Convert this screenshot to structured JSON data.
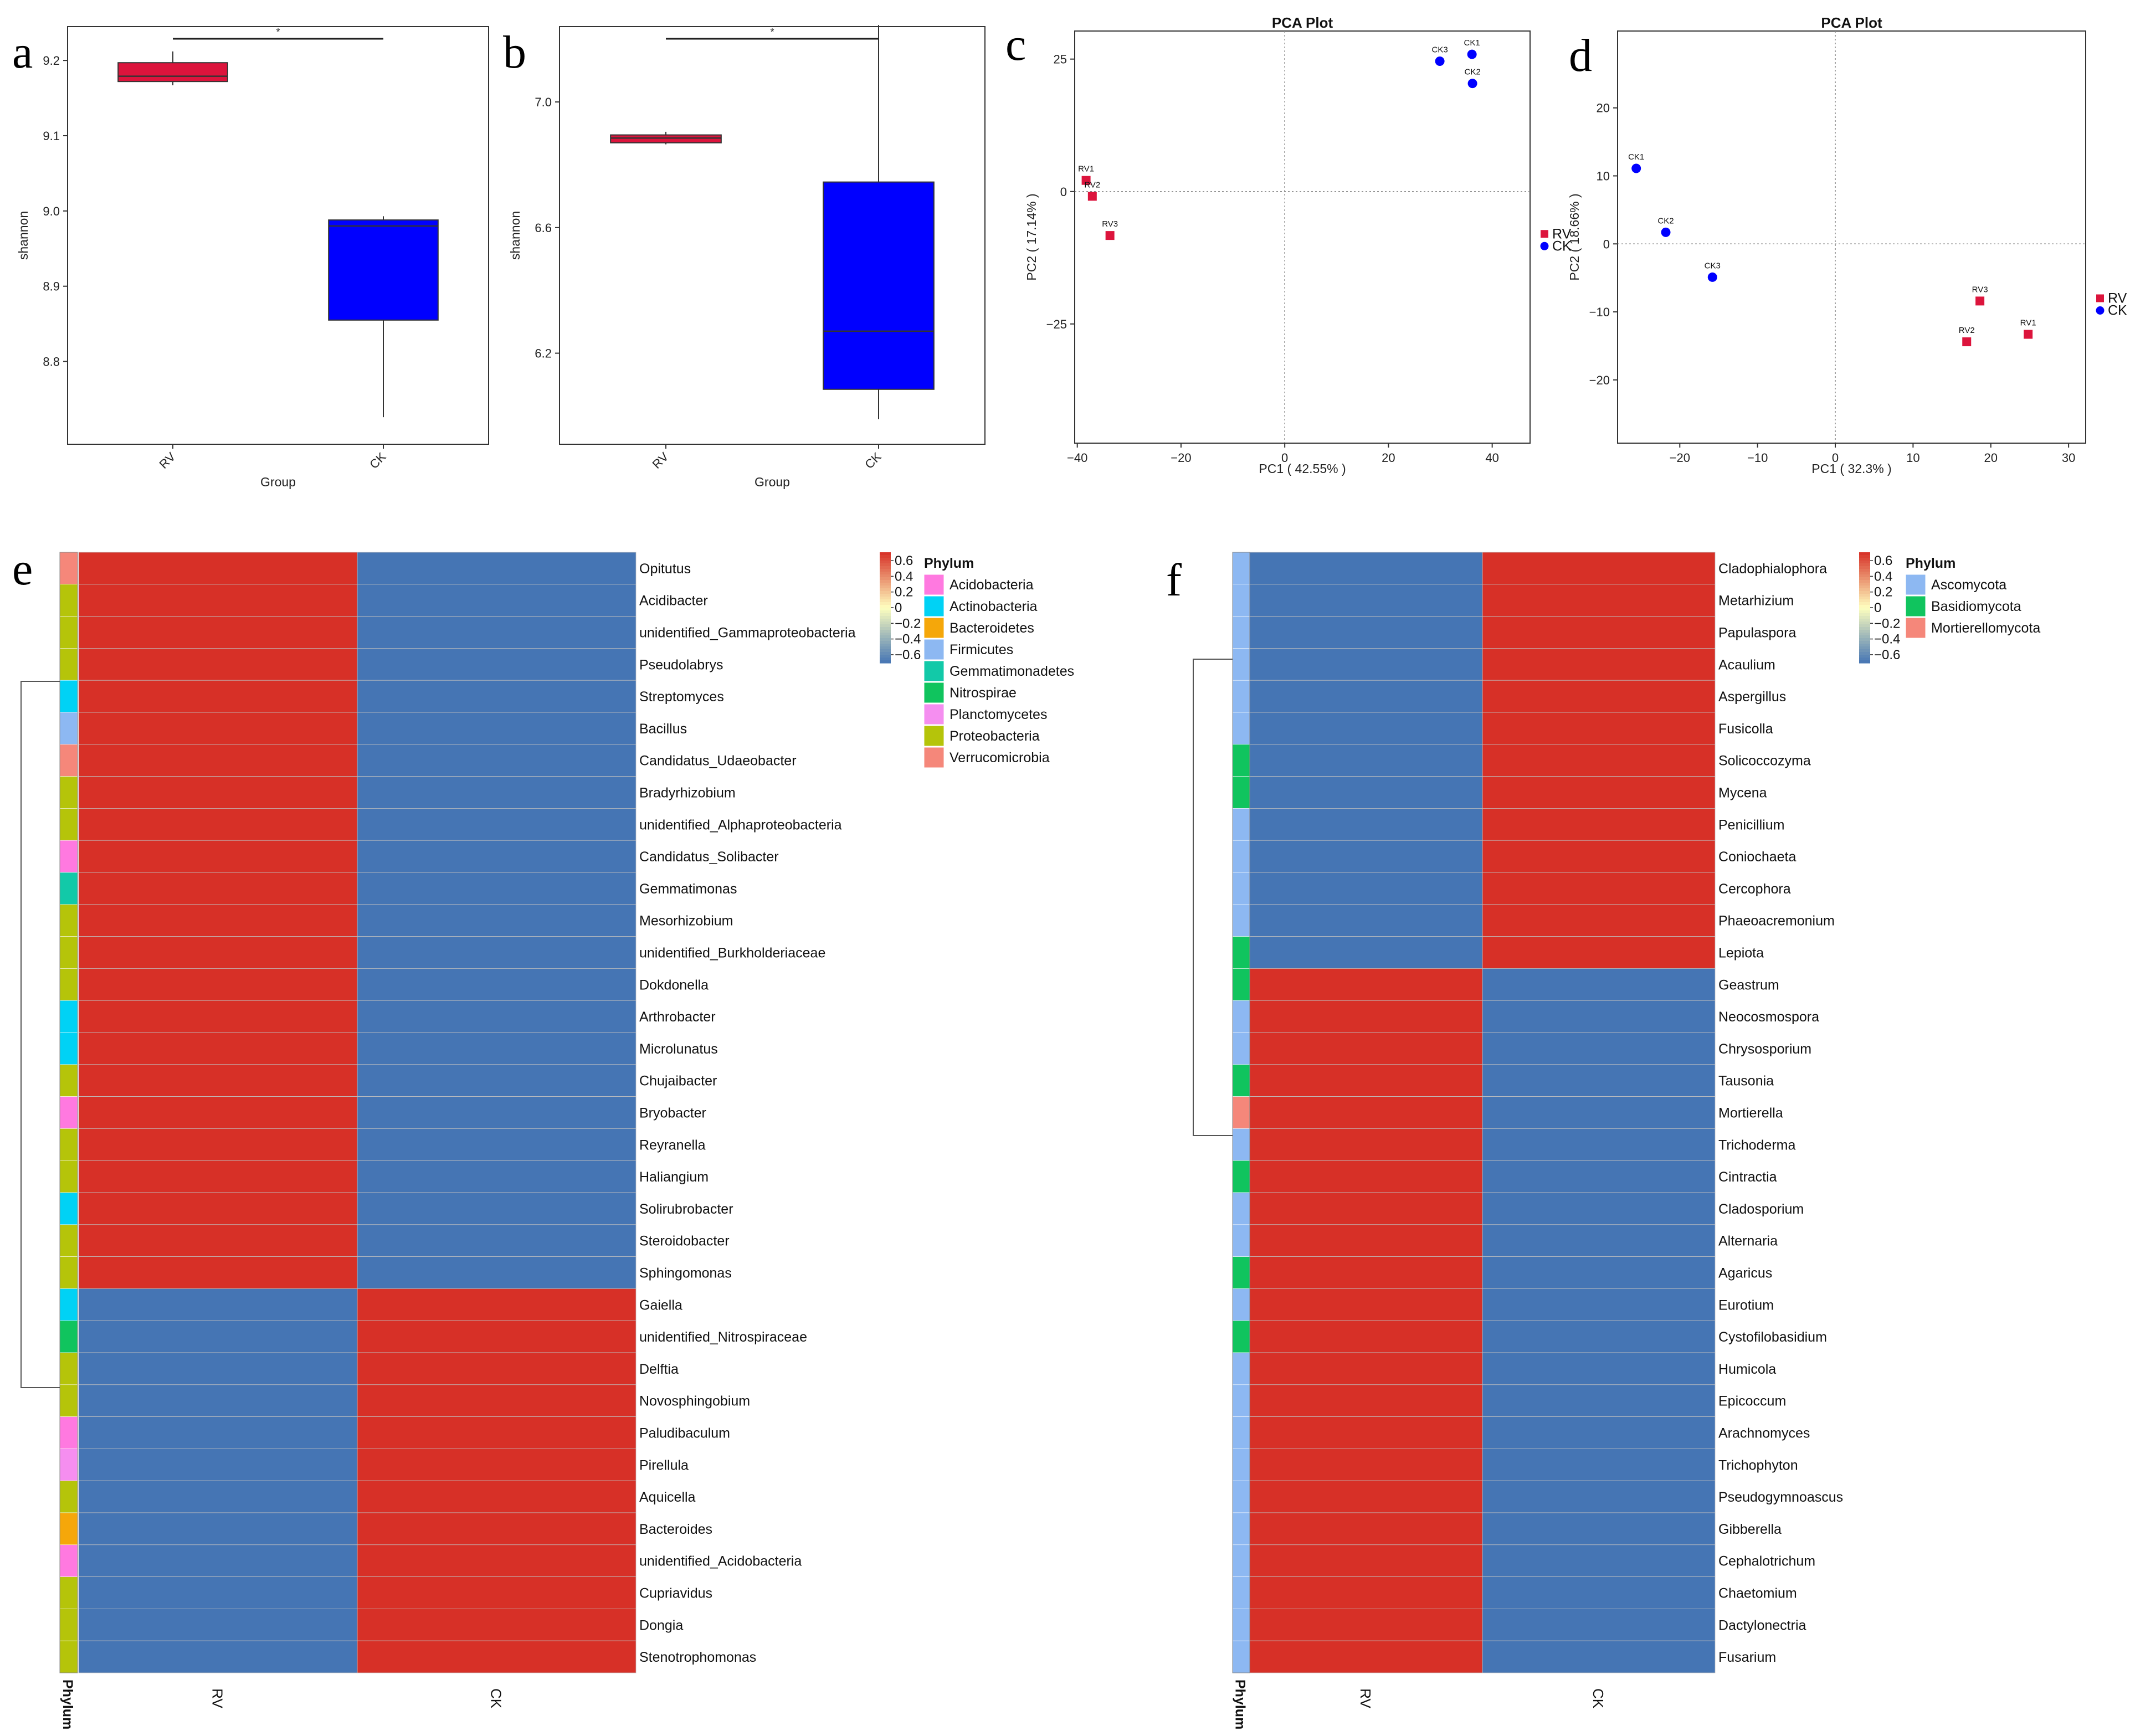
{
  "colors": {
    "rv": "#dc143c",
    "ck": "#0000ff",
    "heat_high": "#d73027",
    "heat_low": "#4575b4"
  },
  "chart_data": [
    {
      "id": "a",
      "type": "box",
      "panel_label": "a",
      "xlabel": "Group",
      "ylabel": "shannon",
      "categories": [
        "RV",
        "CK"
      ],
      "yticks": [
        8.8,
        8.9,
        9.0,
        9.1,
        9.2
      ],
      "ylim": [
        8.69,
        9.245
      ],
      "boxes": [
        {
          "group": "RV",
          "min": 9.167,
          "q1": 9.172,
          "median": 9.179,
          "q3": 9.197,
          "max": 9.212,
          "color": "#dc143c"
        },
        {
          "group": "CK",
          "min": 8.726,
          "q1": 8.855,
          "median": 8.98,
          "q3": 8.988,
          "max": 8.993,
          "color": "#0000ff"
        }
      ],
      "significance": "*"
    },
    {
      "id": "b",
      "type": "box",
      "panel_label": "b",
      "xlabel": "Group",
      "ylabel": "shannon",
      "categories": [
        "RV",
        "CK"
      ],
      "yticks": [
        6.2,
        6.6,
        7.0
      ],
      "ylim": [
        5.91,
        7.24
      ],
      "boxes": [
        {
          "group": "RV",
          "min": 6.865,
          "q1": 6.87,
          "median": 6.885,
          "q3": 6.895,
          "max": 6.905,
          "color": "#dc143c"
        },
        {
          "group": "CK",
          "min": 5.99,
          "q1": 6.085,
          "median": 6.27,
          "q3": 6.745,
          "max": 7.245,
          "color": "#0000ff"
        }
      ],
      "significance": "*"
    },
    {
      "id": "c",
      "type": "scatter",
      "panel_label": "c",
      "title": "PCA Plot",
      "xlabel": "PC1 ( 42.55% )",
      "ylabel": "PC2 ( 17.14% )",
      "xlim": [
        -40.5,
        47.3
      ],
      "ylim": [
        -47.5,
        30.3
      ],
      "xticks": [
        -40,
        -20,
        0,
        20,
        40
      ],
      "yticks": [
        25,
        0,
        -25
      ],
      "legend": [
        "RV",
        "CK"
      ],
      "legend_position": "right",
      "points": [
        {
          "label": "RV1",
          "group": "RV",
          "x": -38.3,
          "y": 2.1
        },
        {
          "label": "RV2",
          "group": "RV",
          "x": -37.1,
          "y": -0.9
        },
        {
          "label": "RV3",
          "group": "RV",
          "x": -33.7,
          "y": -8.3
        },
        {
          "label": "CK3",
          "group": "CK",
          "x": 29.9,
          "y": 24.6
        },
        {
          "label": "CK1",
          "group": "CK",
          "x": 36.1,
          "y": 25.9
        },
        {
          "label": "CK2",
          "group": "CK",
          "x": 36.2,
          "y": 20.4
        }
      ]
    },
    {
      "id": "d",
      "type": "scatter",
      "panel_label": "d",
      "title": "PCA Plot",
      "xlabel": "PC1 ( 32.3% )",
      "ylabel": "PC2 ( 18.66% )",
      "xlim": [
        -28,
        32.2
      ],
      "ylim": [
        -29.3,
        31.3
      ],
      "xticks": [
        -20,
        -10,
        0,
        10,
        20,
        30
      ],
      "yticks": [
        20,
        10,
        0,
        -10,
        -20
      ],
      "legend": [
        "RV",
        "CK"
      ],
      "legend_position": "right",
      "points": [
        {
          "label": "CK1",
          "group": "CK",
          "x": -25.6,
          "y": 11.1
        },
        {
          "label": "CK2",
          "group": "CK",
          "x": -21.8,
          "y": 1.7
        },
        {
          "label": "CK3",
          "group": "CK",
          "x": -15.8,
          "y": -4.9
        },
        {
          "label": "RV3",
          "group": "RV",
          "x": 18.6,
          "y": -8.4
        },
        {
          "label": "RV2",
          "group": "RV",
          "x": 16.9,
          "y": -14.4
        },
        {
          "label": "RV1",
          "group": "RV",
          "x": 24.8,
          "y": -13.3
        }
      ]
    },
    {
      "id": "e",
      "type": "heatmap",
      "panel_label": "e",
      "columns": [
        "RV",
        "CK"
      ],
      "annotation_label": "Phylum",
      "color_scale": {
        "min": -0.707,
        "max": 0.707,
        "ticks": [
          0.6,
          0.4,
          0.2,
          0,
          -0.2,
          -0.4,
          -0.6
        ]
      },
      "legend_title": "Phylum",
      "phyla": [
        {
          "name": "Acidobacteria",
          "color": "#ff79e0"
        },
        {
          "name": "Actinobacteria",
          "color": "#00d2f5"
        },
        {
          "name": "Bacteroidetes",
          "color": "#f5a70a"
        },
        {
          "name": "Firmicutes",
          "color": "#8db8f2"
        },
        {
          "name": "Gemmatimonadetes",
          "color": "#12c9a8"
        },
        {
          "name": "Nitrospirae",
          "color": "#10c45e"
        },
        {
          "name": "Planctomycetes",
          "color": "#f58ef0"
        },
        {
          "name": "Proteobacteria",
          "color": "#b5c40a"
        },
        {
          "name": "Verrucomicrobia",
          "color": "#f5877a"
        }
      ],
      "rows": [
        {
          "name": "Opitutus",
          "phylum": "Verrucomicrobia",
          "values": [
            0.707,
            -0.707
          ]
        },
        {
          "name": "Acidibacter",
          "phylum": "Proteobacteria",
          "values": [
            0.707,
            -0.707
          ]
        },
        {
          "name": "unidentified_Gammaproteobacteria",
          "phylum": "Proteobacteria",
          "values": [
            0.707,
            -0.707
          ]
        },
        {
          "name": "Pseudolabrys",
          "phylum": "Proteobacteria",
          "values": [
            0.707,
            -0.707
          ]
        },
        {
          "name": "Streptomyces",
          "phylum": "Actinobacteria",
          "values": [
            0.707,
            -0.707
          ]
        },
        {
          "name": "Bacillus",
          "phylum": "Firmicutes",
          "values": [
            0.707,
            -0.707
          ]
        },
        {
          "name": "Candidatus_Udaeobacter",
          "phylum": "Verrucomicrobia",
          "values": [
            0.707,
            -0.707
          ]
        },
        {
          "name": "Bradyrhizobium",
          "phylum": "Proteobacteria",
          "values": [
            0.707,
            -0.707
          ]
        },
        {
          "name": "unidentified_Alphaproteobacteria",
          "phylum": "Proteobacteria",
          "values": [
            0.707,
            -0.707
          ]
        },
        {
          "name": "Candidatus_Solibacter",
          "phylum": "Acidobacteria",
          "values": [
            0.707,
            -0.707
          ]
        },
        {
          "name": "Gemmatimonas",
          "phylum": "Gemmatimonadetes",
          "values": [
            0.707,
            -0.707
          ]
        },
        {
          "name": "Mesorhizobium",
          "phylum": "Proteobacteria",
          "values": [
            0.707,
            -0.707
          ]
        },
        {
          "name": "unidentified_Burkholderiaceae",
          "phylum": "Proteobacteria",
          "values": [
            0.707,
            -0.707
          ]
        },
        {
          "name": "Dokdonella",
          "phylum": "Proteobacteria",
          "values": [
            0.707,
            -0.707
          ]
        },
        {
          "name": "Arthrobacter",
          "phylum": "Actinobacteria",
          "values": [
            0.707,
            -0.707
          ]
        },
        {
          "name": "Microlunatus",
          "phylum": "Actinobacteria",
          "values": [
            0.707,
            -0.707
          ]
        },
        {
          "name": "Chujaibacter",
          "phylum": "Proteobacteria",
          "values": [
            0.707,
            -0.707
          ]
        },
        {
          "name": "Bryobacter",
          "phylum": "Acidobacteria",
          "values": [
            0.707,
            -0.707
          ]
        },
        {
          "name": "Reyranella",
          "phylum": "Proteobacteria",
          "values": [
            0.707,
            -0.707
          ]
        },
        {
          "name": "Haliangium",
          "phylum": "Proteobacteria",
          "values": [
            0.707,
            -0.707
          ]
        },
        {
          "name": "Solirubrobacter",
          "phylum": "Actinobacteria",
          "values": [
            0.707,
            -0.707
          ]
        },
        {
          "name": "Steroidobacter",
          "phylum": "Proteobacteria",
          "values": [
            0.707,
            -0.707
          ]
        },
        {
          "name": "Sphingomonas",
          "phylum": "Proteobacteria",
          "values": [
            0.707,
            -0.707
          ]
        },
        {
          "name": "Gaiella",
          "phylum": "Actinobacteria",
          "values": [
            -0.707,
            0.707
          ]
        },
        {
          "name": "unidentified_Nitrospiraceae",
          "phylum": "Nitrospirae",
          "values": [
            -0.707,
            0.707
          ]
        },
        {
          "name": "Delftia",
          "phylum": "Proteobacteria",
          "values": [
            -0.707,
            0.707
          ]
        },
        {
          "name": "Novosphingobium",
          "phylum": "Proteobacteria",
          "values": [
            -0.707,
            0.707
          ]
        },
        {
          "name": "Paludibaculum",
          "phylum": "Acidobacteria",
          "values": [
            -0.707,
            0.707
          ]
        },
        {
          "name": "Pirellula",
          "phylum": "Planctomycetes",
          "values": [
            -0.707,
            0.707
          ]
        },
        {
          "name": "Aquicella",
          "phylum": "Proteobacteria",
          "values": [
            -0.707,
            0.707
          ]
        },
        {
          "name": "Bacteroides",
          "phylum": "Bacteroidetes",
          "values": [
            -0.707,
            0.707
          ]
        },
        {
          "name": "unidentified_Acidobacteria",
          "phylum": "Acidobacteria",
          "values": [
            -0.707,
            0.707
          ]
        },
        {
          "name": "Cupriavidus",
          "phylum": "Proteobacteria",
          "values": [
            -0.707,
            0.707
          ]
        },
        {
          "name": "Dongia",
          "phylum": "Proteobacteria",
          "values": [
            -0.707,
            0.707
          ]
        },
        {
          "name": "Stenotrophomonas",
          "phylum": "Proteobacteria",
          "values": [
            -0.707,
            0.707
          ]
        }
      ]
    },
    {
      "id": "f",
      "type": "heatmap",
      "panel_label": "f",
      "columns": [
        "RV",
        "CK"
      ],
      "annotation_label": "Phylum",
      "color_scale": {
        "min": -0.707,
        "max": 0.707,
        "ticks": [
          0.6,
          0.4,
          0.2,
          0,
          -0.2,
          -0.4,
          -0.6
        ]
      },
      "legend_title": "Phylum",
      "phyla": [
        {
          "name": "Ascomycota",
          "color": "#8db8f2"
        },
        {
          "name": "Basidiomycota",
          "color": "#10c45e"
        },
        {
          "name": "Mortierellomycota",
          "color": "#f5877a"
        }
      ],
      "rows": [
        {
          "name": "Cladophialophora",
          "phylum": "Ascomycota",
          "values": [
            -0.707,
            0.707
          ]
        },
        {
          "name": "Metarhizium",
          "phylum": "Ascomycota",
          "values": [
            -0.707,
            0.707
          ]
        },
        {
          "name": "Papulaspora",
          "phylum": "Ascomycota",
          "values": [
            -0.707,
            0.707
          ]
        },
        {
          "name": "Acaulium",
          "phylum": "Ascomycota",
          "values": [
            -0.707,
            0.707
          ]
        },
        {
          "name": "Aspergillus",
          "phylum": "Ascomycota",
          "values": [
            -0.707,
            0.707
          ]
        },
        {
          "name": "Fusicolla",
          "phylum": "Ascomycota",
          "values": [
            -0.707,
            0.707
          ]
        },
        {
          "name": "Solicoccozyma",
          "phylum": "Basidiomycota",
          "values": [
            -0.707,
            0.707
          ]
        },
        {
          "name": "Mycena",
          "phylum": "Basidiomycota",
          "values": [
            -0.707,
            0.707
          ]
        },
        {
          "name": "Penicillium",
          "phylum": "Ascomycota",
          "values": [
            -0.707,
            0.707
          ]
        },
        {
          "name": "Coniochaeta",
          "phylum": "Ascomycota",
          "values": [
            -0.707,
            0.707
          ]
        },
        {
          "name": "Cercophora",
          "phylum": "Ascomycota",
          "values": [
            -0.707,
            0.707
          ]
        },
        {
          "name": "Phaeoacremonium",
          "phylum": "Ascomycota",
          "values": [
            -0.707,
            0.707
          ]
        },
        {
          "name": "Lepiota",
          "phylum": "Basidiomycota",
          "values": [
            -0.707,
            0.707
          ]
        },
        {
          "name": "Geastrum",
          "phylum": "Basidiomycota",
          "values": [
            0.707,
            -0.707
          ]
        },
        {
          "name": "Neocosmospora",
          "phylum": "Ascomycota",
          "values": [
            0.707,
            -0.707
          ]
        },
        {
          "name": "Chrysosporium",
          "phylum": "Ascomycota",
          "values": [
            0.707,
            -0.707
          ]
        },
        {
          "name": "Tausonia",
          "phylum": "Basidiomycota",
          "values": [
            0.707,
            -0.707
          ]
        },
        {
          "name": "Mortierella",
          "phylum": "Mortierellomycota",
          "values": [
            0.707,
            -0.707
          ]
        },
        {
          "name": "Trichoderma",
          "phylum": "Ascomycota",
          "values": [
            0.707,
            -0.707
          ]
        },
        {
          "name": "Cintractia",
          "phylum": "Basidiomycota",
          "values": [
            0.707,
            -0.707
          ]
        },
        {
          "name": "Cladosporium",
          "phylum": "Ascomycota",
          "values": [
            0.707,
            -0.707
          ]
        },
        {
          "name": "Alternaria",
          "phylum": "Ascomycota",
          "values": [
            0.707,
            -0.707
          ]
        },
        {
          "name": "Agaricus",
          "phylum": "Basidiomycota",
          "values": [
            0.707,
            -0.707
          ]
        },
        {
          "name": "Eurotium",
          "phylum": "Ascomycota",
          "values": [
            0.707,
            -0.707
          ]
        },
        {
          "name": "Cystofilobasidium",
          "phylum": "Basidiomycota",
          "values": [
            0.707,
            -0.707
          ]
        },
        {
          "name": "Humicola",
          "phylum": "Ascomycota",
          "values": [
            0.707,
            -0.707
          ]
        },
        {
          "name": "Epicoccum",
          "phylum": "Ascomycota",
          "values": [
            0.707,
            -0.707
          ]
        },
        {
          "name": "Arachnomyces",
          "phylum": "Ascomycota",
          "values": [
            0.707,
            -0.707
          ]
        },
        {
          "name": "Trichophyton",
          "phylum": "Ascomycota",
          "values": [
            0.707,
            -0.707
          ]
        },
        {
          "name": "Pseudogymnoascus",
          "phylum": "Ascomycota",
          "values": [
            0.707,
            -0.707
          ]
        },
        {
          "name": "Gibberella",
          "phylum": "Ascomycota",
          "values": [
            0.707,
            -0.707
          ]
        },
        {
          "name": "Cephalotrichum",
          "phylum": "Ascomycota",
          "values": [
            0.707,
            -0.707
          ]
        },
        {
          "name": "Chaetomium",
          "phylum": "Ascomycota",
          "values": [
            0.707,
            -0.707
          ]
        },
        {
          "name": "Dactylonectria",
          "phylum": "Ascomycota",
          "values": [
            0.707,
            -0.707
          ]
        },
        {
          "name": "Fusarium",
          "phylum": "Ascomycota",
          "values": [
            0.707,
            -0.707
          ]
        }
      ]
    }
  ]
}
